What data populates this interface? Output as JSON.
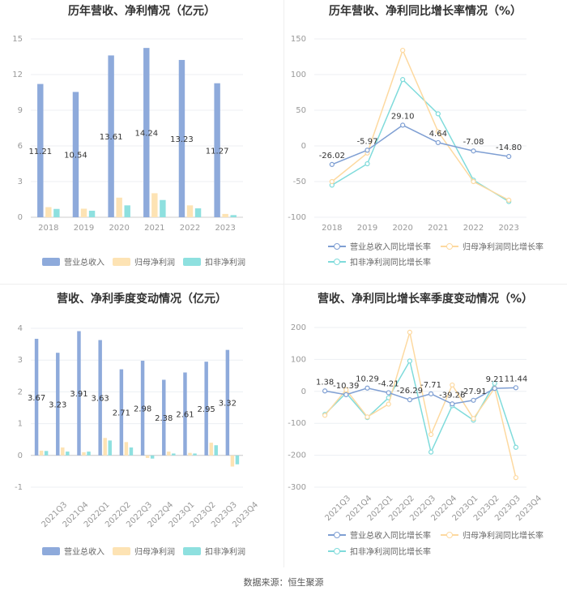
{
  "source": "数据来源：恒生聚源",
  "chart_data": [
    {
      "type": "bar",
      "title": "历年营收、净利情况（亿元）",
      "categories": [
        "2018",
        "2019",
        "2020",
        "2021",
        "2022",
        "2023"
      ],
      "ylim": [
        0,
        15
      ],
      "yticks": [
        0,
        3,
        6,
        9,
        12,
        15
      ],
      "series": [
        {
          "name": "营业总收入",
          "color": "#8eaadb",
          "values": [
            11.21,
            10.54,
            13.61,
            14.24,
            13.23,
            11.27
          ],
          "labels": [
            "11.21",
            "10.54",
            "13.61",
            "14.24",
            "13.23",
            "11.27"
          ]
        },
        {
          "name": "归母净利润",
          "color": "#fde3b4",
          "values": [
            0.85,
            0.72,
            1.65,
            2.02,
            1.0,
            0.28
          ]
        },
        {
          "name": "扣非净利润",
          "color": "#8ee0df",
          "values": [
            0.7,
            0.55,
            1.0,
            1.45,
            0.75,
            0.18
          ]
        }
      ]
    },
    {
      "type": "line",
      "title": "历年营收、净利同比增长率情况（%）",
      "categories": [
        "2018",
        "2019",
        "2020",
        "2021",
        "2022",
        "2023"
      ],
      "ylim": [
        -100,
        150
      ],
      "yticks": [
        -100,
        -50,
        0,
        50,
        100,
        150
      ],
      "series": [
        {
          "name": "营业总收入同比增长率",
          "color": "#7f9fd3",
          "values": [
            -26.02,
            -5.97,
            29.1,
            4.64,
            -7.08,
            -14.8
          ],
          "labels": [
            "-26.02",
            "-5.97",
            "29.10",
            "4.64",
            "-7.08",
            "-14.80"
          ]
        },
        {
          "name": "归母净利润同比增长率",
          "color": "#fdd9a0",
          "values": [
            -50,
            -10,
            134,
            20,
            -50,
            -76
          ]
        },
        {
          "name": "扣非净利润同比增长率",
          "color": "#7fdbdb",
          "values": [
            -55,
            -25,
            93,
            45,
            -48,
            -78
          ]
        }
      ]
    },
    {
      "type": "bar",
      "title": "营收、净利季度变动情况（亿元）",
      "categories": [
        "2021Q3",
        "2021Q4",
        "2022Q1",
        "2022Q2",
        "2022Q3",
        "2022Q4",
        "2023Q1",
        "2023Q2",
        "2023Q3",
        "2023Q4"
      ],
      "ylim": [
        -1,
        4
      ],
      "yticks": [
        -1,
        0,
        1,
        2,
        3,
        4
      ],
      "series": [
        {
          "name": "营业总收入",
          "color": "#8eaadb",
          "values": [
            3.67,
            3.23,
            3.91,
            3.63,
            2.71,
            2.98,
            2.38,
            2.61,
            2.95,
            3.32
          ],
          "labels": [
            "3.67",
            "3.23",
            "3.91",
            "3.63",
            "2.71",
            "2.98",
            "2.38",
            "2.61",
            "2.95",
            "3.32"
          ]
        },
        {
          "name": "归母净利润",
          "color": "#fde3b4",
          "values": [
            0.15,
            0.25,
            0.1,
            0.55,
            0.42,
            -0.08,
            0.12,
            0.08,
            0.4,
            -0.35
          ]
        },
        {
          "name": "扣非净利润",
          "color": "#8ee0df",
          "values": [
            0.14,
            0.12,
            0.12,
            0.47,
            0.25,
            -0.1,
            0.06,
            0.06,
            0.32,
            -0.28
          ]
        }
      ]
    },
    {
      "type": "line",
      "title": "营收、净利同比增长率季度变动情况（%）",
      "categories": [
        "2021Q3",
        "2021Q4",
        "2022Q1",
        "2022Q2",
        "2022Q3",
        "2022Q4",
        "2023Q1",
        "2023Q2",
        "2023Q3",
        "2023Q4"
      ],
      "ylim": [
        -300,
        200
      ],
      "yticks": [
        -300,
        -200,
        -100,
        0,
        100,
        200
      ],
      "series": [
        {
          "name": "营业总收入同比增长率",
          "color": "#7f9fd3",
          "values": [
            1.38,
            -10.39,
            10.29,
            -4.21,
            -26.29,
            -7.71,
            -39.26,
            -27.91,
            9.21,
            11.44
          ],
          "labels": [
            "1.38",
            "-10.39",
            "10.29",
            "-4.21",
            "-26.29",
            "-7.71",
            "-39.26",
            "-27.91",
            "9.21",
            "11.44"
          ]
        },
        {
          "name": "归母净利润同比增长率",
          "color": "#fdd9a0",
          "values": [
            -75,
            5,
            -80,
            -40,
            185,
            -135,
            20,
            -85,
            10,
            -270
          ]
        },
        {
          "name": "扣非净利润同比增长率",
          "color": "#7fdbdb",
          "values": [
            -72,
            -5,
            -82,
            -20,
            95,
            -190,
            -45,
            -90,
            25,
            -175
          ]
        }
      ]
    }
  ]
}
